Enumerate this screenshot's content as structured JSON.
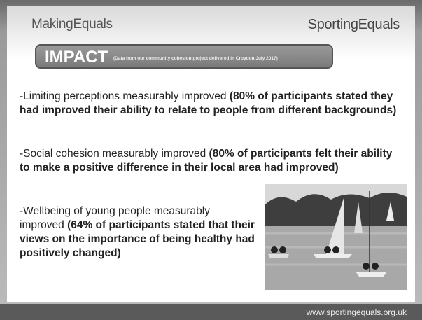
{
  "header": {
    "left_logo": "MakingEquals",
    "right_logo": "SportingEquals"
  },
  "banner": {
    "title": "IMPACT",
    "subtitle": "(Data from our community cohesion project delivered in Croydon July 2017)"
  },
  "points": [
    {
      "text": "-Limiting perceptions measurably improved ",
      "bold": "(80% of participants stated they had improved their ability to relate to people from different backgrounds)"
    },
    {
      "text": "-Social cohesion measurably improved ",
      "bold": "(80% of participants felt their ability to make a positive difference in their local area had improved)"
    },
    {
      "text": "-Wellbeing of young people measurably improved ",
      "bold": "(64% of participants stated that their views on the importance of being healthy had positively changed)"
    }
  ],
  "footer": {
    "url": "www.sportingequals.org.uk"
  }
}
